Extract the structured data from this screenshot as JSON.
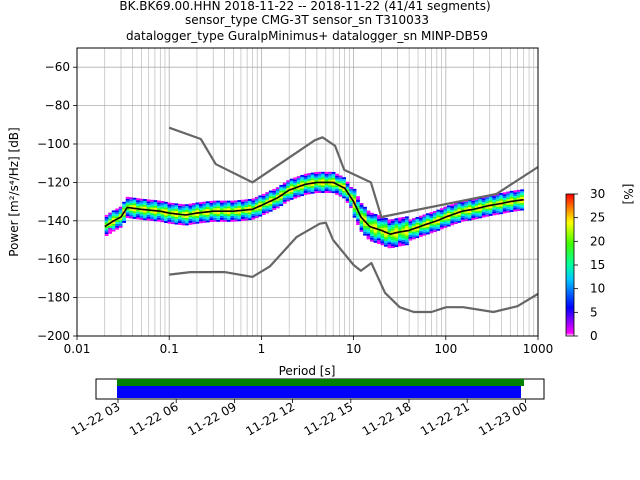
{
  "chart_data": [
    {
      "type": "heatmap",
      "title_lines": [
        "BK.BK69.00.HHN   2018-11-22 -- 2018-11-22  (41/41 segments)",
        "sensor_type CMG-3T sensor_sn T310033",
        "datalogger_type GuralpMinimus+ datalogger_sn MINP-DB59"
      ],
      "xlabel": "Period [s]",
      "ylabel": "Power [m²/s⁴/Hz] [dB]",
      "x_scale": "log",
      "xlim": [
        0.01,
        1000
      ],
      "ylim": [
        -200,
        -50
      ],
      "x_ticks": [
        0.01,
        0.1,
        1,
        10,
        100,
        1000
      ],
      "x_tick_labels": [
        "0.01",
        "0.1",
        "1",
        "10",
        "100",
        "1000"
      ],
      "y_ticks": [
        -200,
        -180,
        -160,
        -140,
        -120,
        -100,
        -80,
        -60
      ],
      "y_tick_labels": [
        "−200",
        "−180",
        "−160",
        "−140",
        "−120",
        "−100",
        "−80",
        "−60"
      ],
      "grid": true,
      "colorbar": {
        "label": "[%]",
        "range": [
          0,
          30
        ],
        "ticks": [
          0,
          5,
          10,
          15,
          20,
          25,
          30
        ],
        "tick_labels": [
          "0",
          "5",
          "10",
          "15",
          "20",
          "25",
          "30"
        ]
      },
      "series": [
        {
          "role": "noise-model-high",
          "x": [
            0.1,
            0.22,
            0.32,
            0.8,
            3.8,
            4.6,
            6.3,
            7.9,
            15.4,
            20,
            354.8,
            1000
          ],
          "y": [
            -91.5,
            -97.4,
            -110.5,
            -120,
            -98,
            -96.5,
            -101,
            -113.5,
            -120,
            -138,
            -126,
            -112
          ]
        },
        {
          "role": "noise-model-low",
          "x": [
            0.1,
            0.17,
            0.4,
            0.8,
            1.24,
            2.4,
            4.3,
            5,
            6,
            10,
            12,
            15.6,
            21.9,
            31.6,
            45,
            70,
            101,
            154,
            328,
            600,
            1000
          ],
          "y": [
            -168,
            -166.7,
            -166.7,
            -169.2,
            -163.7,
            -148.5,
            -141.5,
            -141,
            -150,
            -163,
            -166,
            -162,
            -177.5,
            -185,
            -187.5,
            -187.5,
            -185,
            -185,
            -187.5,
            -184.5,
            -178
          ]
        },
        {
          "role": "mean",
          "x": [
            0.02,
            0.025,
            0.03,
            0.035,
            0.05,
            0.08,
            0.1,
            0.15,
            0.2,
            0.3,
            0.5,
            0.8,
            1,
            1.5,
            2,
            3,
            4,
            5,
            6,
            8,
            10,
            12,
            15,
            20,
            25,
            30,
            40,
            60,
            80,
            100,
            150,
            200,
            300,
            400,
            500,
            700
          ],
          "y": [
            -143,
            -140,
            -138,
            -133,
            -134,
            -135,
            -136,
            -137,
            -136,
            -135,
            -135,
            -134,
            -132,
            -128,
            -124,
            -121,
            -120,
            -120,
            -120,
            -123,
            -130,
            -138,
            -143,
            -145,
            -147,
            -146,
            -145,
            -142,
            -140,
            -138,
            -135,
            -134,
            -132,
            -131,
            -130,
            -129
          ]
        }
      ],
      "bottom_panel": {
        "type": "timeline",
        "x_tick_labels": [
          "11-22 03",
          "11-22 06",
          "11-22 09",
          "11-22 12",
          "11-22 15",
          "11-22 18",
          "11-22 21",
          "11-23 00"
        ],
        "bars": [
          {
            "color": "#008000"
          },
          {
            "color": "#0000ff"
          }
        ]
      }
    }
  ]
}
